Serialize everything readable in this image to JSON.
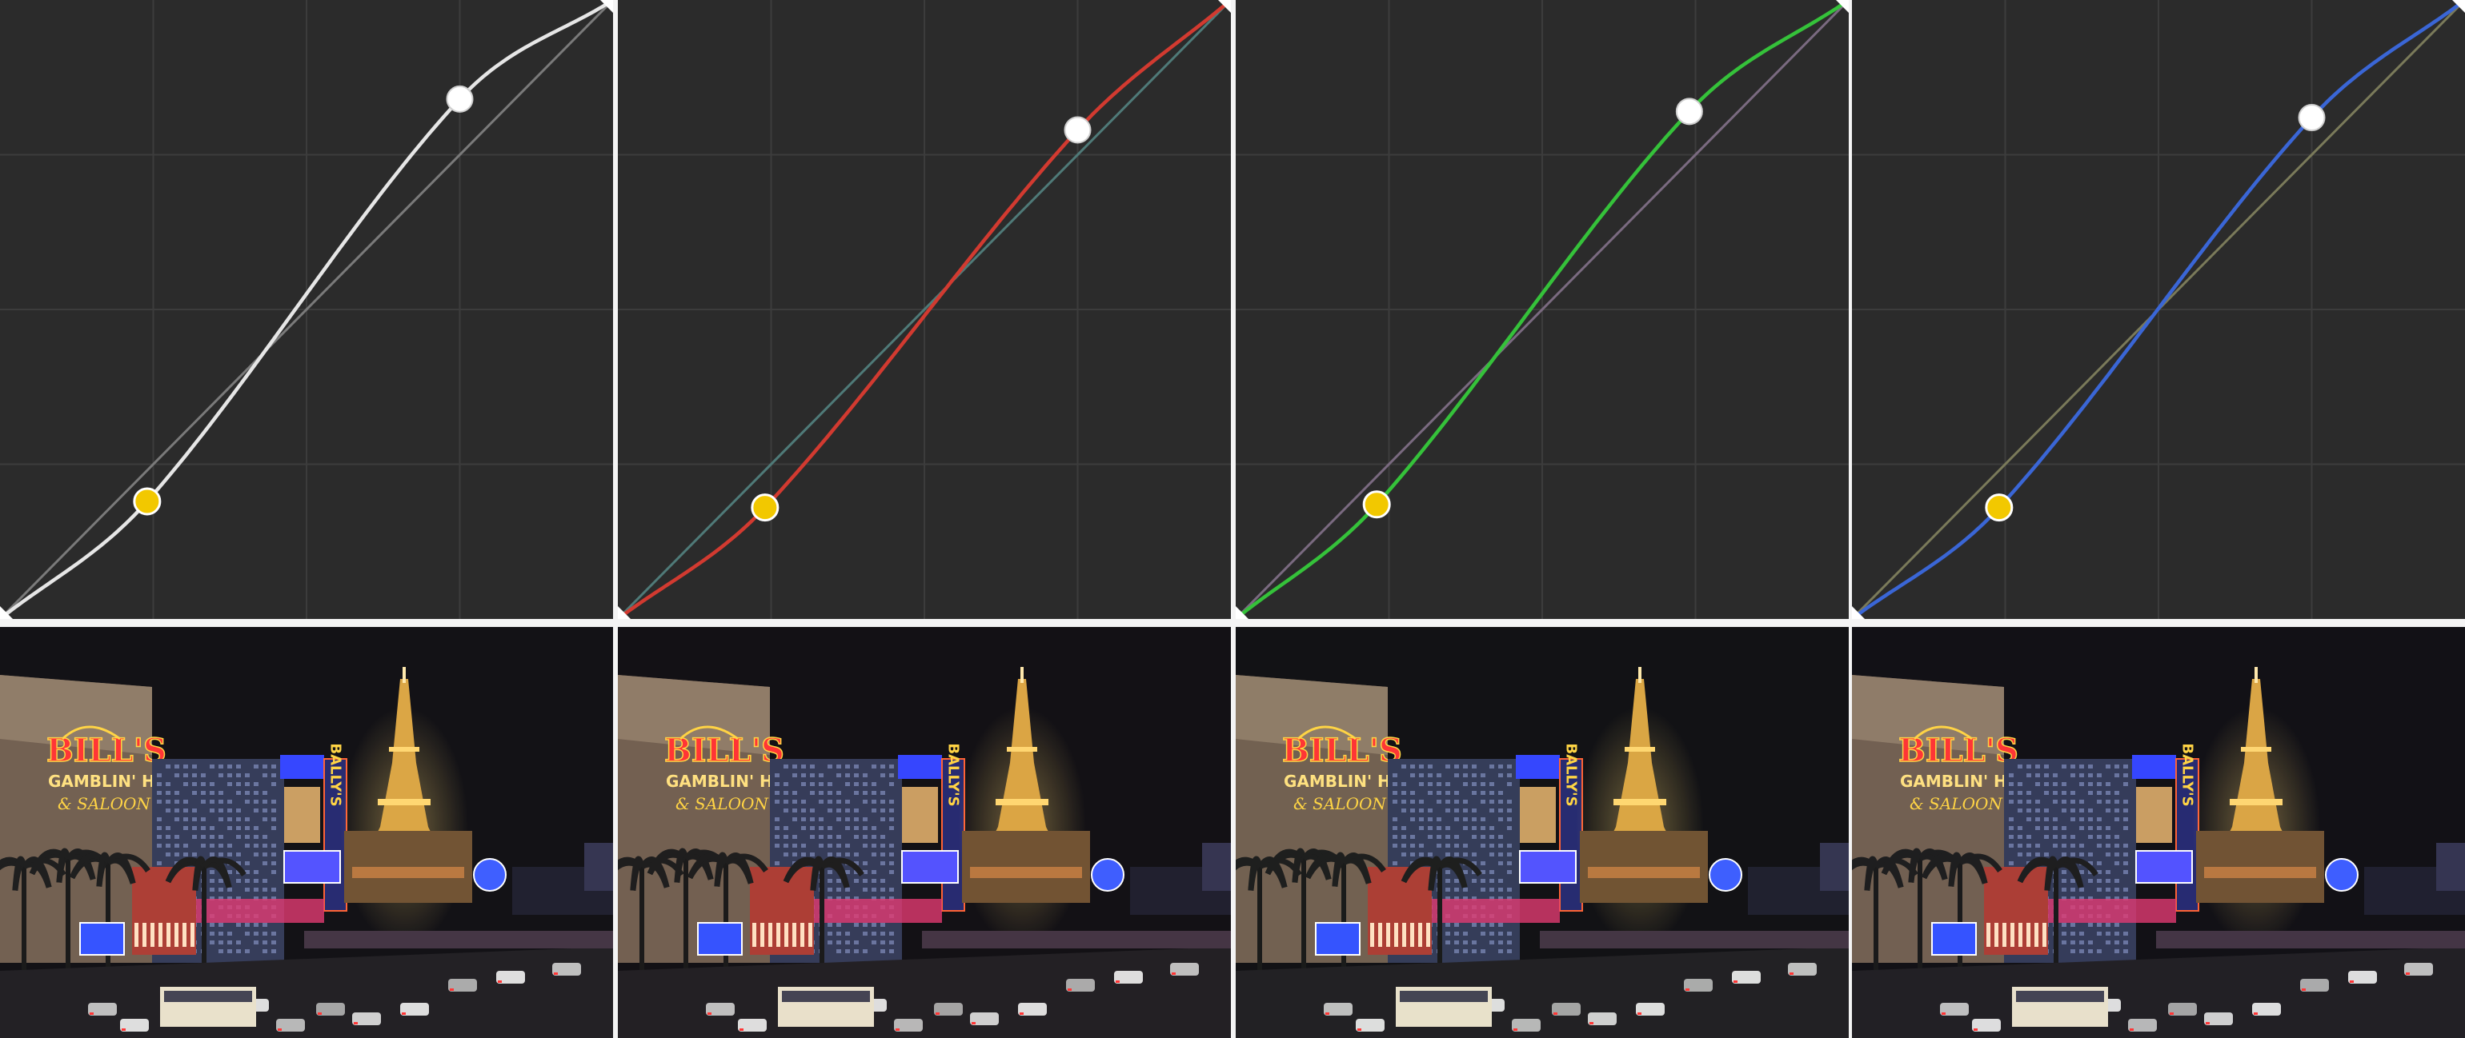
{
  "curves": [
    {
      "channel": "master",
      "curve_color": "#e6e6e6",
      "reference_color": "#7a7a7a",
      "points": [
        [
          0.0,
          0.0
        ],
        [
          0.24,
          0.19
        ],
        [
          0.75,
          0.84
        ],
        [
          1.0,
          1.0
        ]
      ],
      "selected_point_color": "#f2c800",
      "handle_color": "#ffffff"
    },
    {
      "channel": "red",
      "curve_color": "#d23a30",
      "reference_color": "#4f7a78",
      "points": [
        [
          0.0,
          0.0
        ],
        [
          0.24,
          0.18
        ],
        [
          0.75,
          0.79
        ],
        [
          1.0,
          1.0
        ]
      ],
      "selected_point_color": "#f2c800",
      "handle_color": "#ffffff"
    },
    {
      "channel": "green",
      "curve_color": "#35c23a",
      "reference_color": "#7a6a80",
      "points": [
        [
          0.0,
          0.0
        ],
        [
          0.23,
          0.185
        ],
        [
          0.74,
          0.82
        ],
        [
          1.0,
          1.0
        ]
      ],
      "selected_point_color": "#f2c800",
      "handle_color": "#ffffff"
    },
    {
      "channel": "blue",
      "curve_color": "#3a66d6",
      "reference_color": "#7a7a5a",
      "points": [
        [
          0.0,
          0.0
        ],
        [
          0.24,
          0.18
        ],
        [
          0.75,
          0.81
        ],
        [
          1.0,
          1.0
        ]
      ],
      "selected_point_color": "#f2c800",
      "handle_color": "#ffffff"
    }
  ],
  "grid": {
    "divisions": 4,
    "line_color": "#3c3c3c"
  },
  "photos": [
    {
      "tint": "#ffffff"
    },
    {
      "tint": "#fff4f0"
    },
    {
      "tint": "#f0fff0"
    },
    {
      "tint": "#f0f4ff"
    }
  ],
  "sign_text": {
    "casino_name": "BILL'S",
    "line2": "GAMBLIN' HALL",
    "line3": "& SALOON",
    "vertical_sign": "BALLY'S"
  }
}
